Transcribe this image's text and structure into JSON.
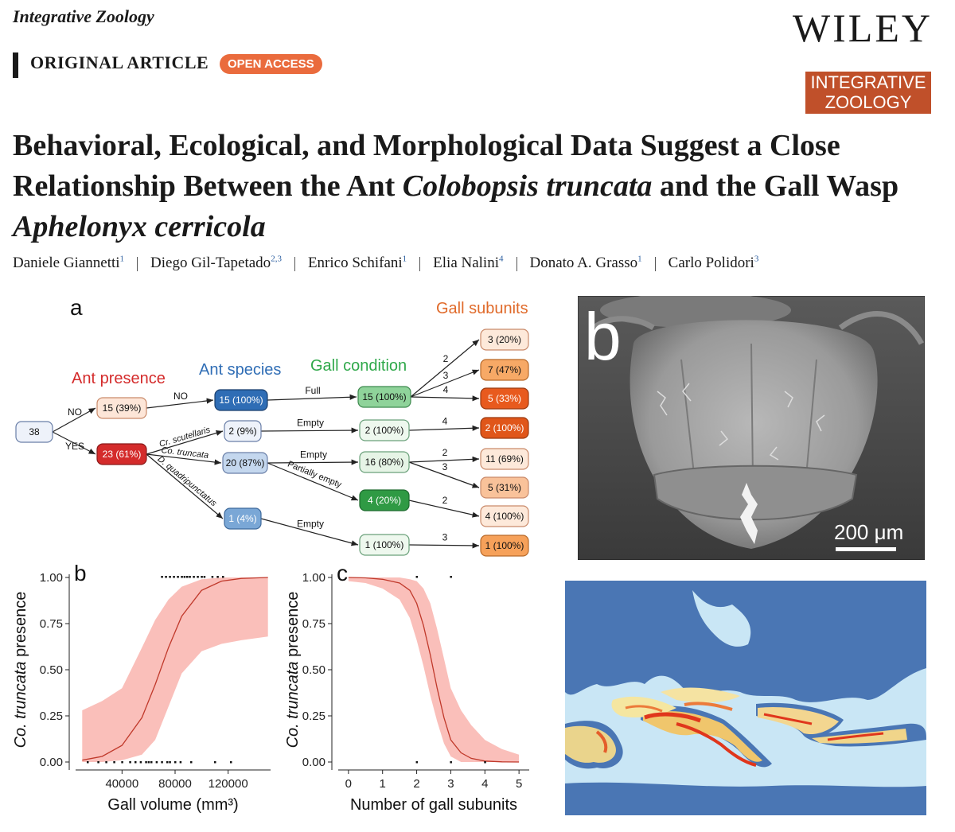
{
  "header": {
    "journal": "Integrative Zoology",
    "publisher": "WILEY",
    "article_type": "ORIGINAL ARTICLE",
    "badge": "OPEN ACCESS",
    "logo_line1": "INTEGRATIVE",
    "logo_line2": "ZOOLOGY"
  },
  "article": {
    "title_p1": "Behavioral, Ecological, and Morphological Data Suggest a Close Relationship Between the Ant ",
    "title_i1": "Colobopsis truncata",
    "title_p2": " and the Gall Wasp ",
    "title_i2": "Aphelonyx cerricola",
    "authors": [
      {
        "name": "Daniele Giannetti",
        "aff": "1"
      },
      {
        "name": "Diego Gil-Tapetado",
        "aff": "2,3"
      },
      {
        "name": "Enrico Schifani",
        "aff": "1"
      },
      {
        "name": "Elia Nalini",
        "aff": "4"
      },
      {
        "name": "Donato A. Grasso",
        "aff": "1"
      },
      {
        "name": "Carlo Polidori",
        "aff": "3"
      }
    ]
  },
  "tree": {
    "panel": "a",
    "headers": {
      "presence": "Ant presence",
      "species": "Ant species",
      "condition": "Gall condition",
      "subunits": "Gall subunits"
    },
    "colors": {
      "presence": "#d42b2b",
      "species": "#2f6db5",
      "condition": "#2fa84a",
      "subunits": "#e06a2a"
    },
    "nodes": {
      "root": "38",
      "no": "15 (39%)",
      "yes": "23 (61%)",
      "sp_none": "15 (100%)",
      "sp_cr": "2 (9%)",
      "sp_co": "20 (87%)",
      "sp_d": "1 (4%)",
      "c_full": "15 (100%)",
      "c_empty_cr": "2 (100%)",
      "c_empty_co": "16 (80%)",
      "c_partial": "4 (20%)",
      "c_empty_d": "1 (100%)",
      "s1": "3 (20%)",
      "s2": "7 (47%)",
      "s3": "5 (33%)",
      "s4": "2 (100%)",
      "s5": "11 (69%)",
      "s6": "5 (31%)",
      "s7": "4 (100%)",
      "s8": "1 (100%)"
    },
    "edges": {
      "no": "NO",
      "yes": "YES",
      "no2": "NO",
      "cr": "Cr. scutellaris",
      "co": "Co. truncata",
      "d": "D. quadripunctatus",
      "full": "Full",
      "empty1": "Empty",
      "empty2": "Empty",
      "partial": "Partially empty",
      "empty3": "Empty",
      "n2": "2",
      "n3": "3",
      "n4": "4",
      "n4b": "4",
      "n2b": "2",
      "n3b": "3",
      "n2c": "2",
      "n3c": "3"
    }
  },
  "sem": {
    "panel": "b",
    "scale_label": "200 μm"
  },
  "chart_data": [
    {
      "type": "line",
      "panel": "b",
      "xlabel": "Gall volume (mm³)",
      "ylabel_italic": "Co. truncata",
      "ylabel_rest": " presence",
      "xticks": [
        "40000",
        "80000",
        "120000"
      ],
      "xtick_values": [
        40000,
        80000,
        120000
      ],
      "yticks": [
        "0.00",
        "0.25",
        "0.50",
        "0.75",
        "1.00"
      ],
      "xlim": [
        5000,
        152000
      ],
      "ylim": [
        0,
        1
      ],
      "series": [
        {
          "x": [
            10000,
            25000,
            40000,
            55000,
            65000,
            75000,
            85000,
            100000,
            115000,
            130000,
            150000
          ],
          "y": [
            0.01,
            0.03,
            0.09,
            0.24,
            0.42,
            0.62,
            0.79,
            0.93,
            0.98,
            0.995,
            1.0
          ],
          "lower": [
            0.0,
            0.0,
            0.01,
            0.04,
            0.12,
            0.3,
            0.48,
            0.6,
            0.64,
            0.66,
            0.68
          ],
          "upper": [
            0.28,
            0.33,
            0.4,
            0.62,
            0.77,
            0.88,
            0.95,
            0.99,
            1.0,
            1.0,
            1.0
          ]
        }
      ],
      "rug_top": [
        70000,
        73000,
        76000,
        79000,
        82000,
        85000,
        87000,
        89000,
        91000,
        94000,
        97000,
        100000,
        102000,
        108000,
        112000,
        116000
      ],
      "rug_bottom": [
        14000,
        22000,
        28000,
        34000,
        40000,
        46000,
        50000,
        54000,
        58000,
        60000,
        62000,
        66000,
        70000,
        74000,
        76000,
        80000,
        84000,
        92000,
        110000,
        122000
      ]
    },
    {
      "type": "line",
      "panel": "c",
      "xlabel": "Number of gall subunits",
      "ylabel_italic": "Co. truncata",
      "ylabel_rest": " presence",
      "xticks": [
        "0",
        "1",
        "2",
        "3",
        "4",
        "5"
      ],
      "xtick_values": [
        0,
        1,
        2,
        3,
        4,
        5
      ],
      "yticks": [
        "0.00",
        "0.25",
        "0.50",
        "0.75",
        "1.00"
      ],
      "xlim": [
        -0.3,
        5.3
      ],
      "ylim": [
        0,
        1
      ],
      "series": [
        {
          "x": [
            0,
            0.5,
            1,
            1.5,
            1.8,
            2.0,
            2.2,
            2.4,
            2.6,
            2.8,
            3.0,
            3.3,
            3.6,
            4.0,
            4.5,
            5.0
          ],
          "y": [
            1.0,
            0.998,
            0.99,
            0.97,
            0.93,
            0.86,
            0.74,
            0.58,
            0.4,
            0.24,
            0.12,
            0.05,
            0.02,
            0.005,
            0.001,
            0.0
          ],
          "lower": [
            0.98,
            0.97,
            0.94,
            0.88,
            0.78,
            0.66,
            0.52,
            0.36,
            0.22,
            0.1,
            0.03,
            0.0,
            0.0,
            0.0,
            0.0,
            0.0
          ],
          "upper": [
            1.0,
            1.0,
            1.0,
            1.0,
            0.99,
            0.98,
            0.94,
            0.86,
            0.72,
            0.56,
            0.4,
            0.28,
            0.2,
            0.12,
            0.07,
            0.04
          ]
        }
      ],
      "rug_top": [
        2,
        3
      ],
      "rug_bottom": [
        2,
        3,
        4
      ]
    }
  ],
  "map": {
    "sea_color": "#c9e6f5",
    "land_color": "#4a76b4",
    "low_color": "#f5e6a0",
    "high_color": "#e0361c"
  }
}
